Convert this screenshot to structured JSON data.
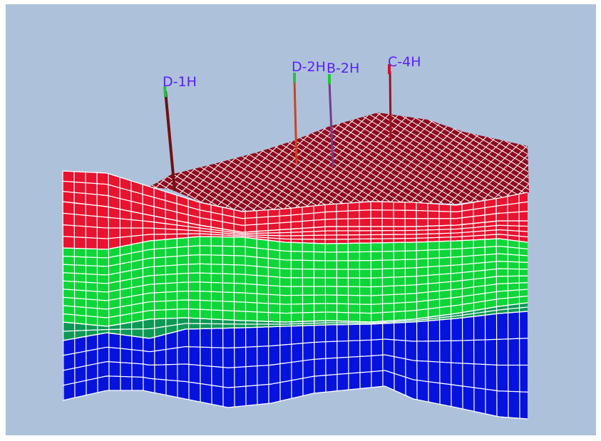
{
  "colors": {
    "background": "#adc2da",
    "frame": "#ffffff",
    "grid_line": "#ffffff",
    "top_layer": "#8e0a1e",
    "red_layer": "#e8132f",
    "green_layer": "#0fd638",
    "teal_layer": "#0d9955",
    "blue_layer": "#0513dc",
    "well_label": "#5b1dff"
  },
  "wells": [
    {
      "label": "D-1H",
      "color": "#6e1212",
      "tip_color": "#22c43a"
    },
    {
      "label": "D-2H",
      "color": "#d1421a",
      "tip_color": "#22c43a"
    },
    {
      "label": "B-2H",
      "color": "#7a3a8a",
      "tip_color": "#22c43a"
    },
    {
      "label": "C-4H",
      "color": "#a0101e",
      "tip_color": "#d6102a"
    }
  ]
}
